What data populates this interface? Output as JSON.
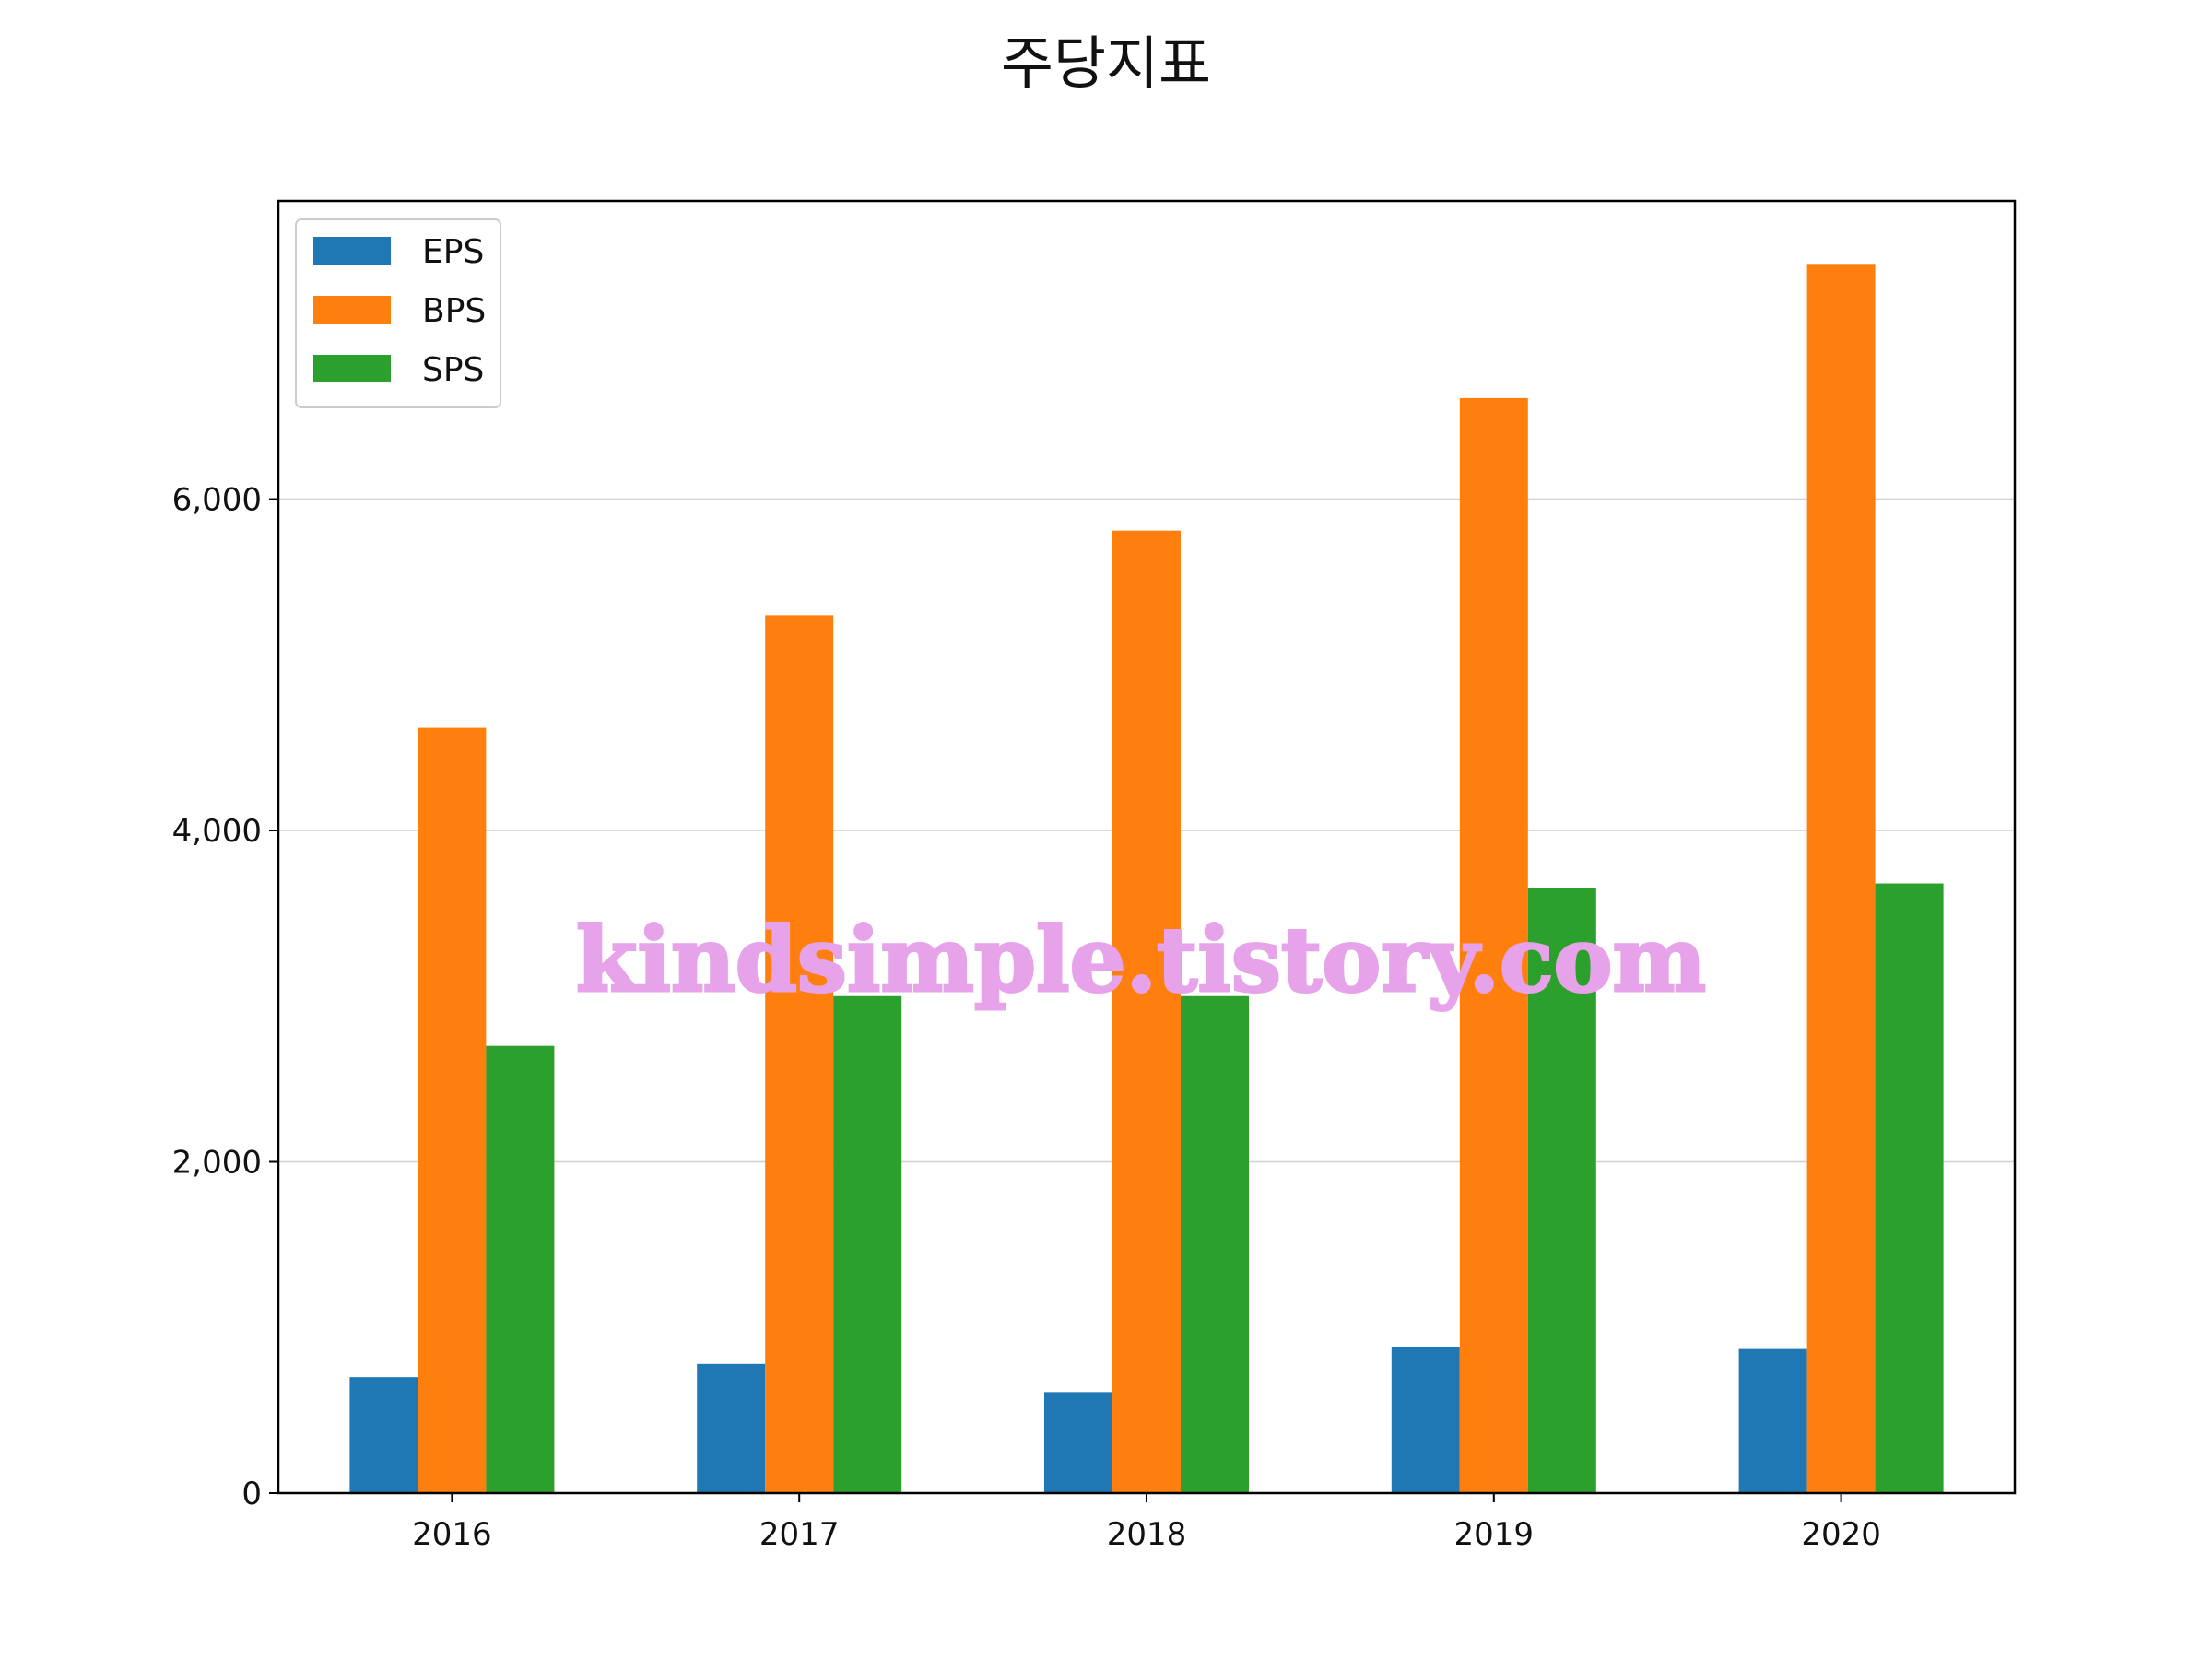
{
  "chart_data": {
    "type": "bar",
    "title": "주당지표",
    "xlabel": "",
    "ylabel": "",
    "categories": [
      "2016",
      "2017",
      "2018",
      "2019",
      "2020"
    ],
    "series": [
      {
        "name": "EPS",
        "color": "#1F77B4",
        "values": [
          700,
          780,
          610,
          880,
          870
        ]
      },
      {
        "name": "BPS",
        "color": "#FF7F0E",
        "values": [
          4620,
          5300,
          5810,
          6610,
          7420
        ]
      },
      {
        "name": "SPS",
        "color": "#2CA02C",
        "values": [
          2700,
          3000,
          3000,
          3650,
          3680
        ]
      }
    ],
    "ylim": [
      0,
      7800
    ],
    "yticks": [
      0,
      2000,
      4000,
      6000
    ],
    "ytick_labels": [
      "0",
      "2,000",
      "4,000",
      "6,000"
    ],
    "grid": "y",
    "legend_position": "top-left"
  },
  "watermark": {
    "text": "kindsimple.tistory.com",
    "color": "#E6A3E9"
  }
}
